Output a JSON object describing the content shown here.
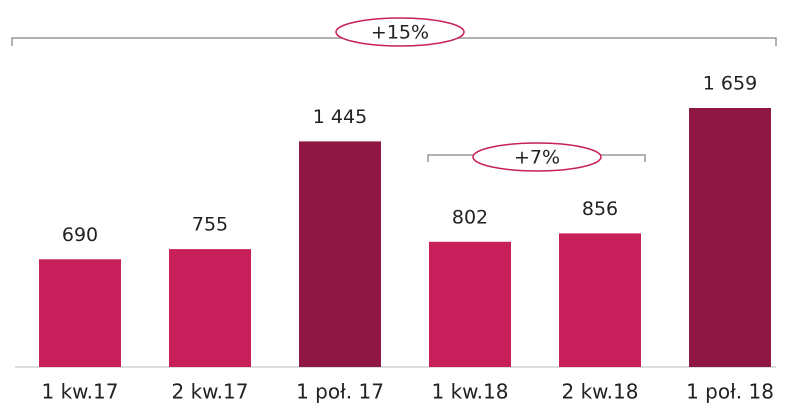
{
  "chart_data": {
    "type": "bar",
    "categories": [
      "1 kw.17",
      "2 kw.17",
      "1 poł. 17",
      "1 kw.18",
      "2 kw.18",
      "1 poł. 18"
    ],
    "values": [
      690,
      755,
      1445,
      802,
      856,
      1659
    ],
    "value_labels": [
      "690",
      "755",
      "1 445",
      "802",
      "856",
      "1 659"
    ],
    "colors": [
      "#c71f59",
      "#c71f59",
      "#8e1744",
      "#c71f59",
      "#c71f59",
      "#8e1744"
    ],
    "annotations": [
      "+15%",
      "+7%"
    ]
  }
}
